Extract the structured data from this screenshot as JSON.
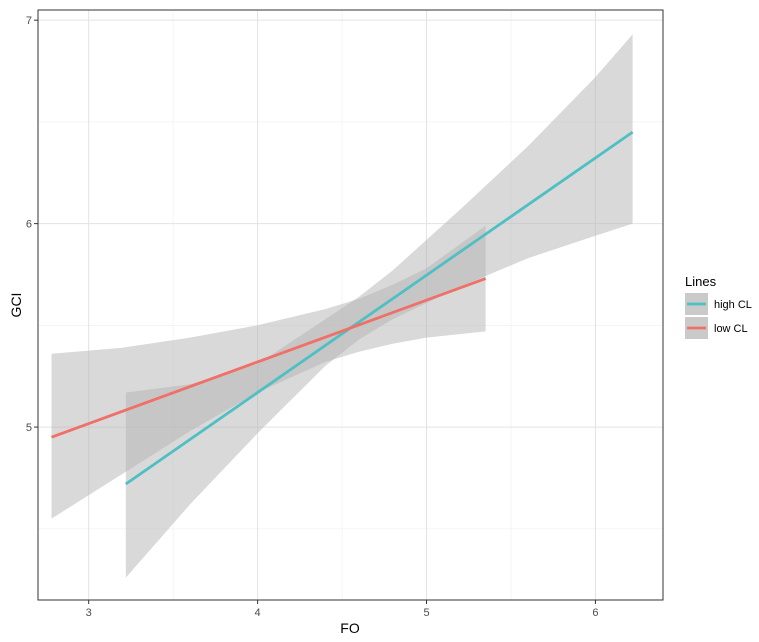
{
  "chart_data": {
    "type": "line",
    "xlabel": "FO",
    "ylabel": "GCI",
    "xlim": [
      2.7,
      6.4
    ],
    "ylim": [
      4.15,
      7.05
    ],
    "x_ticks": [
      3,
      4,
      5,
      6
    ],
    "y_ticks": [
      5,
      6,
      7
    ],
    "grid": true,
    "confidence_band_color": "#b3b3b3",
    "legend": {
      "title": "Lines",
      "position": "right"
    },
    "series": [
      {
        "name": "high CL",
        "color": "#4fbfc4",
        "x": [
          3.22,
          6.22
        ],
        "y": [
          4.72,
          6.45
        ],
        "band": {
          "x": [
            3.22,
            3.6,
            4.0,
            4.4,
            4.6,
            4.8,
            5.2,
            5.6,
            6.0,
            6.22
          ],
          "lower": [
            4.26,
            4.62,
            4.97,
            5.3,
            5.43,
            5.53,
            5.69,
            5.83,
            5.94,
            6.0
          ],
          "upper": [
            5.17,
            5.21,
            5.31,
            5.53,
            5.64,
            5.77,
            6.07,
            6.38,
            6.72,
            6.93
          ]
        }
      },
      {
        "name": "low CL",
        "color": "#f07067",
        "x": [
          2.78,
          5.35
        ],
        "y": [
          4.95,
          5.73
        ],
        "band": {
          "x": [
            2.78,
            3.2,
            3.6,
            4.0,
            4.4,
            4.6,
            4.8,
            5.0,
            5.35
          ],
          "lower": [
            4.55,
            4.77,
            4.98,
            5.17,
            5.32,
            5.37,
            5.41,
            5.44,
            5.47
          ],
          "upper": [
            5.36,
            5.39,
            5.44,
            5.5,
            5.58,
            5.63,
            5.7,
            5.78,
            5.99
          ]
        }
      }
    ]
  }
}
